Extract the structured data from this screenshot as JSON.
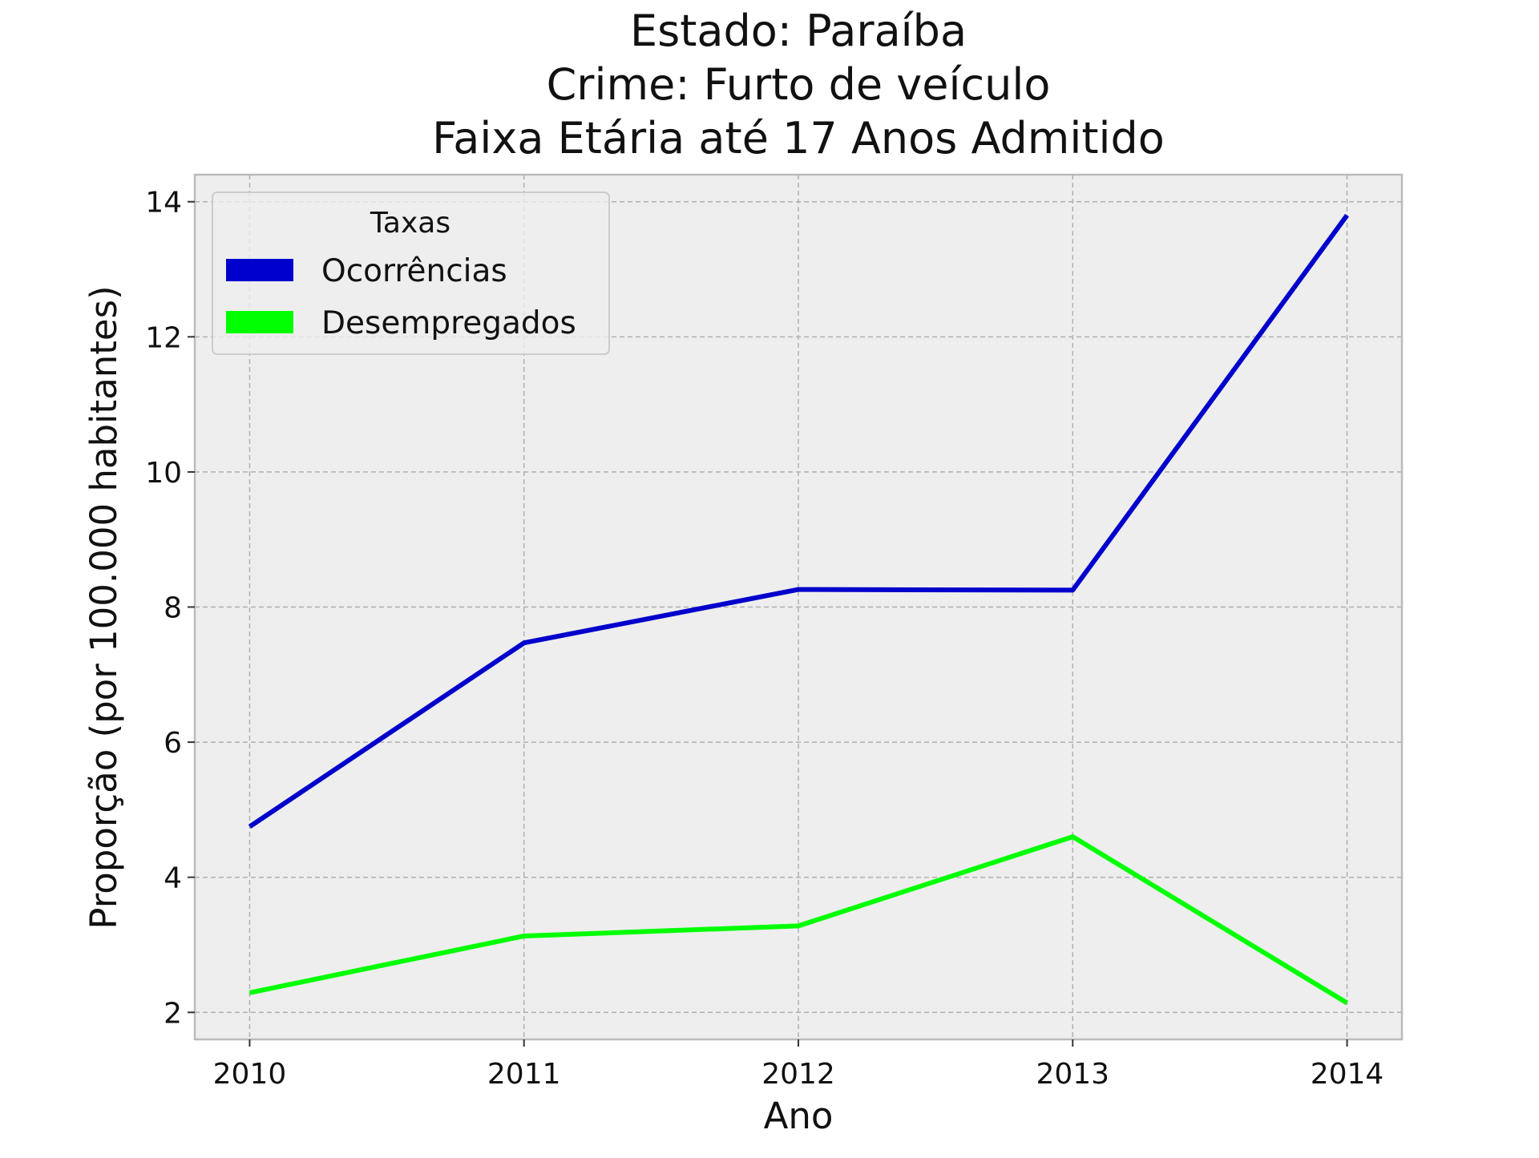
{
  "chart_data": {
    "type": "line",
    "title_lines": [
      "Estado: Paraíba",
      "Crime: Furto de veículo",
      "Faixa Etária até 17 Anos   Admitido"
    ],
    "xlabel": "Ano",
    "ylabel": "Proporção (por 100.000 habitantes)",
    "x": [
      2010,
      2011,
      2012,
      2013,
      2014
    ],
    "x_tick_labels": [
      "2010",
      "2011",
      "2012",
      "2013",
      "2014"
    ],
    "y_ticks": [
      2,
      4,
      6,
      8,
      10,
      12,
      14
    ],
    "y_tick_labels": [
      "2",
      "4",
      "6",
      "8",
      "10",
      "12",
      "14"
    ],
    "xlim": [
      2009.8,
      2014.2
    ],
    "ylim": [
      1.6,
      14.4
    ],
    "grid": true,
    "legend": {
      "title": "Taxas",
      "position": "top-left"
    },
    "series": [
      {
        "name": "Ocorrências",
        "color": "#0000cc",
        "values": [
          4.75,
          7.47,
          8.26,
          8.25,
          13.8
        ]
      },
      {
        "name": "Desempregados",
        "color": "#00ff00",
        "values": [
          2.29,
          3.13,
          3.28,
          4.6,
          2.14
        ]
      }
    ],
    "colors": {
      "plot_background": "#eeeeee",
      "grid": "#b0b0b0",
      "spine": "#bbbbbb"
    }
  }
}
